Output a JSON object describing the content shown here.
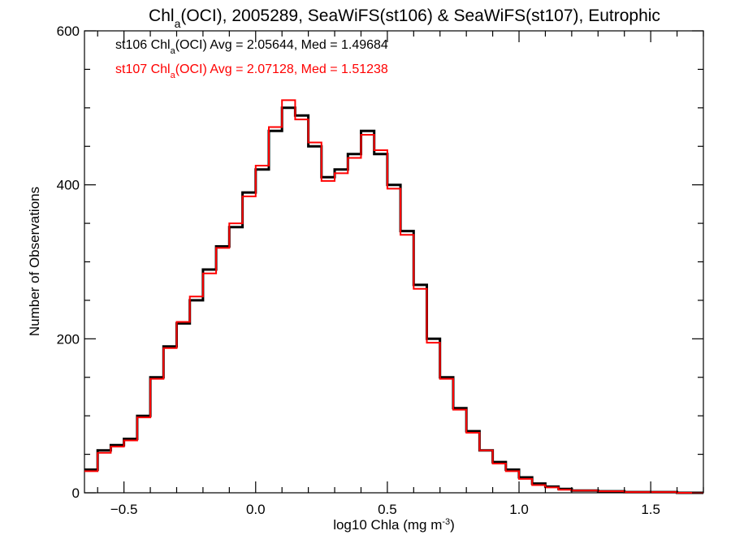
{
  "chart_data": {
    "type": "histogram",
    "title_parts": [
      "Chl",
      "a",
      "(OCI), 2005289, SeaWiFS(st106) & SeaWiFS(st107), Eutrophic"
    ],
    "xlabel_parts": [
      "log10 Chla (mg m",
      "-3",
      ")"
    ],
    "ylabel": "Number of Observations",
    "xlim": [
      -0.65,
      1.7
    ],
    "ylim": [
      0,
      600
    ],
    "x_ticks": [
      -0.5,
      0.0,
      0.5,
      1.0,
      1.5
    ],
    "x_tick_labels": [
      "−0.5",
      "0.0",
      "0.5",
      "1.0",
      "1.5"
    ],
    "y_ticks": [
      0,
      200,
      400,
      600
    ],
    "y_tick_labels": [
      "0",
      "200",
      "400",
      "600"
    ],
    "legend": [
      {
        "parts": [
          "st106 Chl",
          "a",
          "(OCI) Avg = 2.05644, Med = 1.49684"
        ],
        "color": "#000000"
      },
      {
        "parts": [
          "st107 Chl",
          "a",
          "(OCI) Avg = 2.07128, Med = 1.51238"
        ],
        "color": "#ff0000"
      }
    ],
    "series": [
      {
        "name": "st106",
        "color": "#000000",
        "x": [
          -0.65,
          -0.6,
          -0.55,
          -0.5,
          -0.45,
          -0.4,
          -0.35,
          -0.3,
          -0.25,
          -0.2,
          -0.15,
          -0.1,
          -0.05,
          0.0,
          0.05,
          0.1,
          0.15,
          0.2,
          0.25,
          0.3,
          0.35,
          0.4,
          0.45,
          0.5,
          0.55,
          0.6,
          0.65,
          0.7,
          0.75,
          0.8,
          0.85,
          0.9,
          0.95,
          1.0,
          1.05,
          1.1,
          1.15,
          1.2,
          1.3,
          1.4,
          1.5,
          1.6,
          1.7
        ],
        "y": [
          30,
          55,
          62,
          70,
          100,
          150,
          190,
          220,
          250,
          290,
          320,
          345,
          390,
          420,
          470,
          500,
          490,
          450,
          410,
          420,
          440,
          470,
          440,
          400,
          340,
          270,
          200,
          150,
          110,
          80,
          55,
          40,
          30,
          20,
          12,
          8,
          5,
          3,
          2,
          1,
          1,
          0,
          0
        ]
      },
      {
        "name": "st107",
        "color": "#ff0000",
        "x": [
          -0.65,
          -0.6,
          -0.55,
          -0.5,
          -0.45,
          -0.4,
          -0.35,
          -0.3,
          -0.25,
          -0.2,
          -0.15,
          -0.1,
          -0.05,
          0.0,
          0.05,
          0.1,
          0.15,
          0.2,
          0.25,
          0.3,
          0.35,
          0.4,
          0.45,
          0.5,
          0.55,
          0.6,
          0.65,
          0.7,
          0.75,
          0.8,
          0.85,
          0.9,
          0.95,
          1.0,
          1.05,
          1.1,
          1.15,
          1.2,
          1.3,
          1.4,
          1.5,
          1.6,
          1.7
        ],
        "y": [
          28,
          52,
          60,
          68,
          98,
          148,
          188,
          222,
          255,
          285,
          318,
          350,
          385,
          425,
          475,
          510,
          485,
          455,
          405,
          415,
          435,
          465,
          445,
          395,
          335,
          265,
          195,
          148,
          108,
          78,
          55,
          38,
          28,
          18,
          10,
          7,
          4,
          3,
          2,
          1,
          1,
          0,
          0
        ]
      }
    ]
  }
}
